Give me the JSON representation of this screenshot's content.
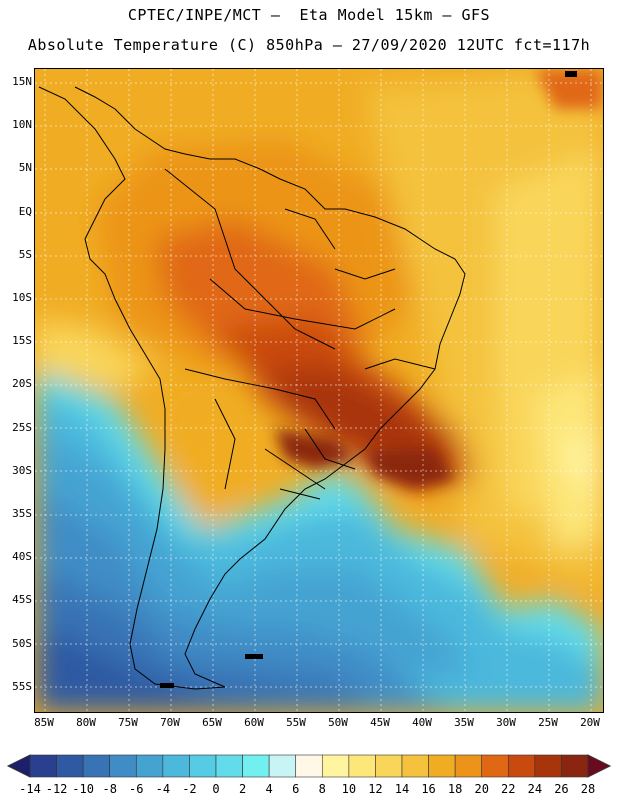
{
  "header": {
    "line1": "CPTEC/INPE/MCT –  Eta Model 15km – GFS",
    "line2": "Absolute Temperature (C) 850hPa – 27/09/2020 12UTC fct=117h"
  },
  "map": {
    "lat_labels": [
      "15N",
      "10N",
      "5N",
      "EQ",
      "5S",
      "10S",
      "15S",
      "20S",
      "25S",
      "30S",
      "35S",
      "40S",
      "45S",
      "50S",
      "55S"
    ],
    "lon_labels": [
      "85W",
      "80W",
      "75W",
      "70W",
      "65W",
      "60W",
      "55W",
      "50W",
      "45W",
      "40W",
      "35W",
      "30W",
      "25W",
      "20W"
    ]
  },
  "legend": {
    "labels": [
      "-14",
      "-12",
      "-10",
      "-8",
      "-6",
      "-4",
      "-2",
      "0",
      "2",
      "4",
      "6",
      "8",
      "10",
      "12",
      "14",
      "16",
      "18",
      "20",
      "22",
      "24",
      "26",
      "28"
    ],
    "colors": [
      "#2a3f8f",
      "#2f5aa3",
      "#3773b5",
      "#3f8cc6",
      "#45a3d2",
      "#4cb8dc",
      "#55cbe4",
      "#62dcea",
      "#72f0f0",
      "#c8f4f6",
      "#fff8e6",
      "#fff4a0",
      "#fde77a",
      "#f9d65a",
      "#f4c23d",
      "#f0ad24",
      "#ec9419",
      "#e06814",
      "#c94a0f",
      "#a8340c",
      "#8a2510"
    ]
  }
}
